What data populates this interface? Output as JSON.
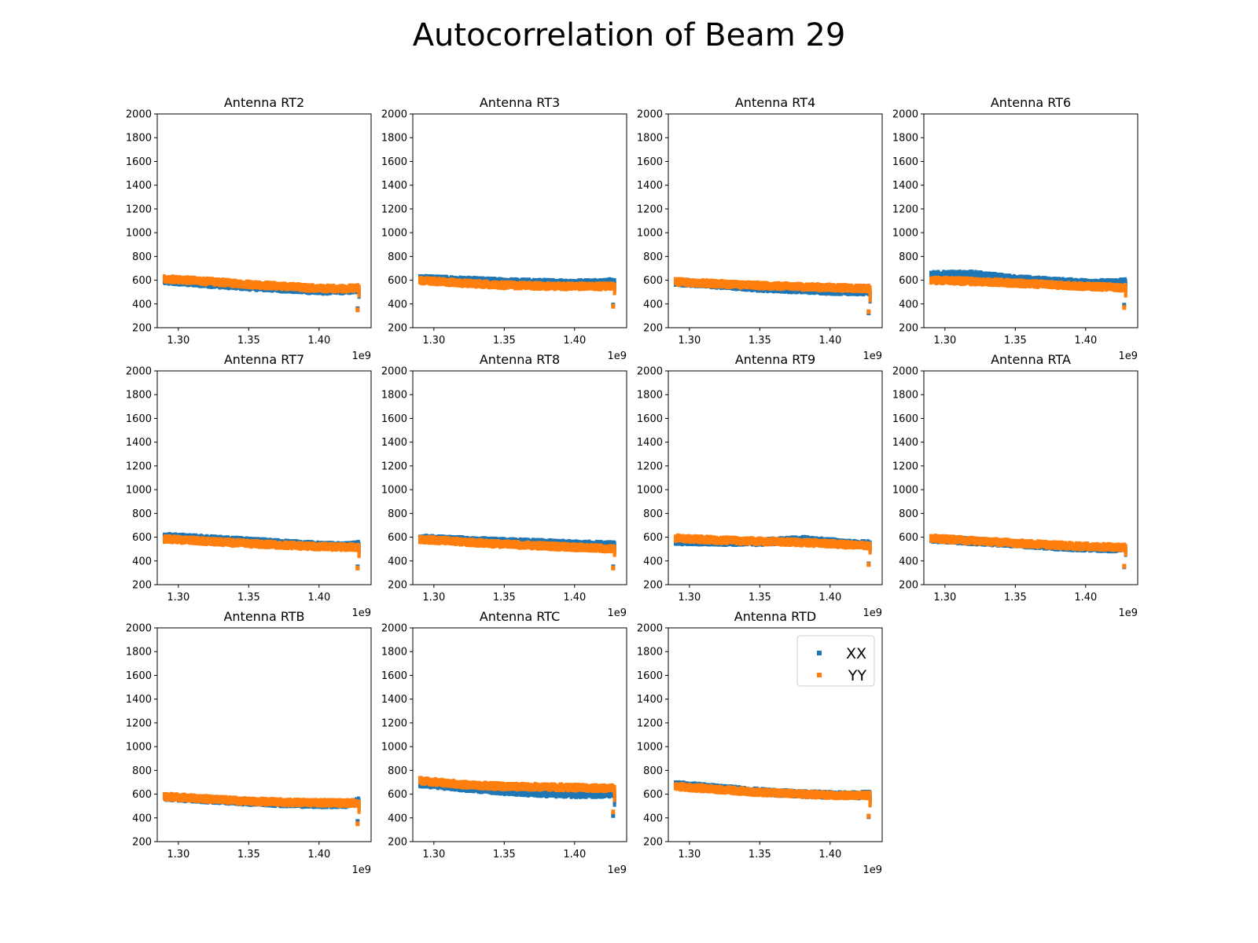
{
  "title": "Autocorrelation of Beam 29",
  "colors": {
    "XX": "#1f77b4",
    "YY": "#ff7f0e"
  },
  "chart_data": {
    "type": "scatter",
    "title": "Autocorrelation of Beam 29",
    "xlim": [
      1285000000.0,
      1437000000.0
    ],
    "ylim": [
      200,
      2000
    ],
    "xticks": [
      1300000000.0,
      1350000000.0,
      1400000000.0
    ],
    "xtick_labels": [
      "1.30",
      "1.35",
      "1.40"
    ],
    "x_offset_label": "1e9",
    "yticks": [
      200,
      400,
      600,
      800,
      1000,
      1200,
      1400,
      1600,
      1800,
      2000
    ],
    "ytick_labels": [
      "200",
      "400",
      "600",
      "800",
      "1000",
      "1200",
      "1400",
      "1600",
      "1800",
      "2000"
    ],
    "legend": {
      "placement": "top-right",
      "panel": "Antenna RTD",
      "entries": [
        "XX",
        "YY"
      ]
    },
    "grid": false,
    "panels": [
      {
        "title": "Antenna RT2",
        "series": [
          {
            "name": "XX",
            "x": [
              1290000000.0,
              1320000000.0,
              1350000000.0,
              1380000000.0,
              1400000000.0,
              1420000000.0,
              1428000000.0
            ],
            "y": [
              595,
              570,
              545,
              525,
              510,
              515,
              520
            ],
            "tail": [
              470,
              360
            ]
          },
          {
            "name": "YY",
            "x": [
              1290000000.0,
              1320000000.0,
              1350000000.0,
              1380000000.0,
              1400000000.0,
              1420000000.0,
              1428000000.0
            ],
            "y": [
              612,
              590,
              565,
              545,
              530,
              530,
              535
            ],
            "tail": [
              480,
              350
            ]
          }
        ]
      },
      {
        "title": "Antenna RT3",
        "series": [
          {
            "name": "XX",
            "x": [
              1290000000.0,
              1320000000.0,
              1350000000.0,
              1380000000.0,
              1400000000.0,
              1420000000.0,
              1428000000.0
            ],
            "y": [
              615,
              598,
              585,
              578,
              575,
              578,
              590
            ],
            "tail": [
              520,
              390
            ]
          },
          {
            "name": "YY",
            "x": [
              1290000000.0,
              1320000000.0,
              1350000000.0,
              1380000000.0,
              1400000000.0,
              1420000000.0,
              1428000000.0
            ],
            "y": [
              600,
              575,
              558,
              550,
              548,
              548,
              550
            ],
            "tail": [
              500,
              380
            ]
          }
        ]
      },
      {
        "title": "Antenna RT4",
        "series": [
          {
            "name": "XX",
            "x": [
              1290000000.0,
              1320000000.0,
              1350000000.0,
              1380000000.0,
              1400000000.0,
              1420000000.0,
              1428000000.0
            ],
            "y": [
              585,
              560,
              535,
              520,
              510,
              505,
              505
            ],
            "tail": [
              430,
              325
            ]
          },
          {
            "name": "YY",
            "x": [
              1290000000.0,
              1320000000.0,
              1350000000.0,
              1380000000.0,
              1400000000.0,
              1420000000.0,
              1428000000.0
            ],
            "y": [
              585,
              570,
              555,
              545,
              538,
              532,
              530
            ],
            "tail": [
              440,
              335
            ]
          }
        ]
      },
      {
        "title": "Antenna RT6",
        "series": [
          {
            "name": "XX",
            "x": [
              1290000000.0,
              1320000000.0,
              1350000000.0,
              1380000000.0,
              1400000000.0,
              1420000000.0,
              1428000000.0
            ],
            "y": [
              645,
              648,
              610,
              588,
              578,
              575,
              585
            ],
            "tail": [
              520,
              390
            ]
          },
          {
            "name": "YY",
            "x": [
              1290000000.0,
              1320000000.0,
              1350000000.0,
              1380000000.0,
              1400000000.0,
              1420000000.0,
              1428000000.0
            ],
            "y": [
              600,
              590,
              575,
              560,
              548,
              540,
              535
            ],
            "tail": [
              480,
              370
            ]
          }
        ]
      },
      {
        "title": "Antenna RT7",
        "series": [
          {
            "name": "XX",
            "x": [
              1290000000.0,
              1320000000.0,
              1350000000.0,
              1380000000.0,
              1400000000.0,
              1420000000.0,
              1428000000.0
            ],
            "y": [
              605,
              585,
              565,
              545,
              530,
              525,
              535
            ],
            "tail": [
              470,
              350
            ]
          },
          {
            "name": "YY",
            "x": [
              1290000000.0,
              1320000000.0,
              1350000000.0,
              1380000000.0,
              1400000000.0,
              1420000000.0,
              1428000000.0
            ],
            "y": [
              585,
              565,
              545,
              530,
              520,
              515,
              515
            ],
            "tail": [
              450,
              340
            ]
          }
        ]
      },
      {
        "title": "Antenna RT8",
        "series": [
          {
            "name": "XX",
            "x": [
              1290000000.0,
              1320000000.0,
              1350000000.0,
              1380000000.0,
              1400000000.0,
              1420000000.0,
              1428000000.0
            ],
            "y": [
              590,
              575,
              560,
              550,
              542,
              535,
              540
            ],
            "tail": [
              480,
              350
            ]
          },
          {
            "name": "YY",
            "x": [
              1290000000.0,
              1320000000.0,
              1350000000.0,
              1380000000.0,
              1400000000.0,
              1420000000.0,
              1428000000.0
            ],
            "y": [
              582,
              560,
              540,
              525,
              515,
              505,
              500
            ],
            "tail": [
              460,
              340
            ]
          }
        ]
      },
      {
        "title": "Antenna RT9",
        "series": [
          {
            "name": "XX",
            "x": [
              1290000000.0,
              1320000000.0,
              1350000000.0,
              1380000000.0,
              1400000000.0,
              1420000000.0,
              1428000000.0
            ],
            "y": [
              565,
              560,
              558,
              578,
              560,
              540,
              545
            ],
            "tail": [
              500,
              375
            ]
          },
          {
            "name": "YY",
            "x": [
              1290000000.0,
              1320000000.0,
              1350000000.0,
              1380000000.0,
              1400000000.0,
              1420000000.0,
              1428000000.0
            ],
            "y": [
              590,
              575,
              565,
              555,
              545,
              530,
              530
            ],
            "tail": [
              480,
              370
            ]
          }
        ]
      },
      {
        "title": "Antenna RTA",
        "series": [
          {
            "name": "XX",
            "x": [
              1290000000.0,
              1320000000.0,
              1350000000.0,
              1380000000.0,
              1400000000.0,
              1420000000.0,
              1428000000.0
            ],
            "y": [
              585,
              565,
              545,
              520,
              510,
              505,
              510
            ],
            "tail": [
              460,
              350
            ]
          },
          {
            "name": "YY",
            "x": [
              1290000000.0,
              1320000000.0,
              1350000000.0,
              1380000000.0,
              1400000000.0,
              1420000000.0,
              1428000000.0
            ],
            "y": [
              590,
              570,
              550,
              532,
              522,
              515,
              515
            ],
            "tail": [
              465,
              355
            ]
          }
        ]
      },
      {
        "title": "Antenna RTB",
        "series": [
          {
            "name": "XX",
            "x": [
              1290000000.0,
              1320000000.0,
              1350000000.0,
              1380000000.0,
              1400000000.0,
              1420000000.0,
              1428000000.0
            ],
            "y": [
              575,
              555,
              535,
              520,
              515,
              515,
              540
            ],
            "tail": [
              470,
              370
            ]
          },
          {
            "name": "YY",
            "x": [
              1290000000.0,
              1320000000.0,
              1350000000.0,
              1380000000.0,
              1400000000.0,
              1420000000.0,
              1428000000.0
            ],
            "y": [
              580,
              560,
              540,
              530,
              528,
              525,
              525
            ],
            "tail": [
              460,
              350
            ]
          }
        ]
      },
      {
        "title": "Antenna RTC",
        "series": [
          {
            "name": "XX",
            "x": [
              1290000000.0,
              1320000000.0,
              1350000000.0,
              1380000000.0,
              1400000000.0,
              1420000000.0,
              1428000000.0
            ],
            "y": [
              690,
              655,
              625,
              605,
              600,
              600,
              605
            ],
            "tail": [
              520,
              420
            ]
          },
          {
            "name": "YY",
            "x": [
              1290000000.0,
              1320000000.0,
              1350000000.0,
              1380000000.0,
              1400000000.0,
              1420000000.0,
              1428000000.0
            ],
            "y": [
              715,
              680,
              665,
              660,
              655,
              650,
              650
            ],
            "tail": [
              560,
              450
            ]
          }
        ]
      },
      {
        "title": "Antenna RTD",
        "series": [
          {
            "name": "XX",
            "x": [
              1290000000.0,
              1320000000.0,
              1350000000.0,
              1380000000.0,
              1400000000.0,
              1420000000.0,
              1428000000.0
            ],
            "y": [
              680,
              650,
              620,
              600,
              595,
              590,
              600
            ],
            "tail": [
              520,
              410
            ]
          },
          {
            "name": "YY",
            "x": [
              1290000000.0,
              1320000000.0,
              1350000000.0,
              1380000000.0,
              1400000000.0,
              1420000000.0,
              1428000000.0
            ],
            "y": [
              665,
              640,
              615,
              600,
              592,
              588,
              590
            ],
            "tail": [
              515,
              415
            ]
          }
        ]
      }
    ]
  }
}
